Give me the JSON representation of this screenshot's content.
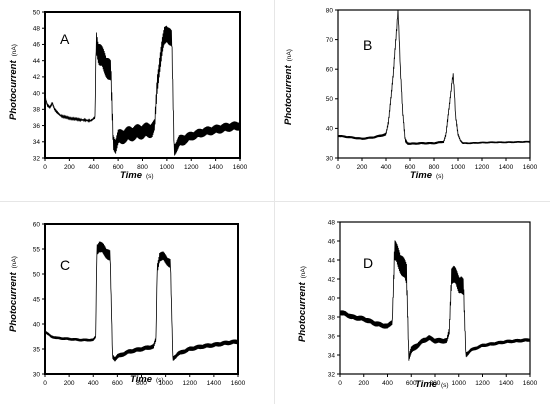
{
  "chart_data": [
    {
      "type": "line",
      "panel_label": "A",
      "xlabel": "Time",
      "xunit": "(s)",
      "ylabel": "Photocurrent",
      "yunit": "(nA)",
      "xlim": [
        0,
        1600
      ],
      "ylim": [
        32,
        50
      ],
      "xticks": [
        0,
        200,
        400,
        600,
        800,
        1000,
        1200,
        1400,
        1600
      ],
      "yticks": [
        32,
        34,
        36,
        38,
        40,
        42,
        44,
        46,
        48,
        50
      ],
      "series": [
        {
          "x": [
            0,
            20,
            40,
            60,
            80,
            100,
            130,
            200,
            300,
            380,
            410,
            420,
            440,
            460,
            480,
            500,
            520,
            540,
            560,
            580,
            600,
            700,
            800,
            880,
            900,
            920,
            940,
            960,
            980,
            1000,
            1020,
            1040,
            1060,
            1080,
            1100,
            1200,
            1300,
            1400,
            1500,
            1600
          ],
          "y": [
            39.5,
            38.5,
            38.2,
            38.8,
            38.0,
            37.6,
            37.2,
            36.9,
            36.7,
            36.6,
            37.0,
            46.5,
            45.0,
            44.5,
            44.0,
            43.5,
            43.0,
            42.5,
            34.0,
            33.5,
            34.5,
            35.0,
            35.3,
            35.5,
            36.0,
            41.0,
            43.5,
            45.5,
            47.0,
            47.5,
            47.0,
            46.5,
            33.0,
            33.5,
            34.0,
            34.7,
            35.2,
            35.5,
            35.8,
            36.0
          ],
          "noise": [
            0.2,
            0.2,
            0.2,
            0.2,
            0.2,
            0.2,
            0.1,
            0.1,
            0.1,
            0.1,
            0.2,
            1.5,
            1.5,
            1.5,
            1.5,
            1.5,
            1.5,
            1.5,
            1.0,
            1.0,
            1.0,
            1.0,
            1.0,
            1.0,
            0.8,
            1.2,
            1.2,
            1.2,
            1.2,
            1.2,
            1.2,
            1.2,
            0.8,
            0.8,
            0.8,
            0.6,
            0.6,
            0.6,
            0.6,
            0.6
          ]
        }
      ]
    },
    {
      "type": "line",
      "panel_label": "B",
      "xlabel": "Time",
      "xunit": "(s)",
      "ylabel": "Photocurrent",
      "yunit": "(nA)",
      "xlim": [
        0,
        1600
      ],
      "ylim": [
        30,
        80
      ],
      "xticks": [
        0,
        200,
        400,
        600,
        800,
        1000,
        1200,
        1400,
        1600
      ],
      "yticks": [
        30,
        40,
        50,
        60,
        70,
        80
      ],
      "series": [
        {
          "x": [
            0,
            100,
            200,
            300,
            400,
            420,
            440,
            460,
            480,
            490,
            500,
            510,
            520,
            540,
            560,
            580,
            600,
            700,
            800,
            880,
            900,
            920,
            940,
            950,
            960,
            970,
            980,
            1000,
            1020,
            1040,
            1100,
            1200,
            1300,
            1400,
            1500,
            1600
          ],
          "y": [
            37.5,
            37.0,
            36.5,
            37.0,
            38.0,
            42.0,
            50.0,
            58.0,
            69.0,
            74.0,
            80.0,
            71.0,
            60.0,
            45.0,
            36.0,
            35.0,
            34.8,
            35.0,
            35.0,
            35.5,
            38.0,
            45.0,
            52.0,
            56.0,
            58.0,
            52.0,
            44.0,
            38.0,
            36.0,
            35.0,
            35.0,
            35.2,
            35.3,
            35.3,
            35.4,
            35.5
          ],
          "noise": [
            0.4,
            0.4,
            0.4,
            0.4,
            0.5,
            0.8,
            1.0,
            1.0,
            1.0,
            1.0,
            1.0,
            1.0,
            1.0,
            1.0,
            0.8,
            0.5,
            0.4,
            0.4,
            0.4,
            0.4,
            0.6,
            0.8,
            0.8,
            0.8,
            0.8,
            0.8,
            0.8,
            0.5,
            0.4,
            0.3,
            0.3,
            0.3,
            0.3,
            0.3,
            0.3,
            0.3
          ]
        }
      ]
    },
    {
      "type": "line",
      "panel_label": "C",
      "xlabel": "Time",
      "xunit": "(s)",
      "ylabel": "Photocurrent",
      "yunit": "(nA)",
      "xlim": [
        0,
        1600
      ],
      "ylim": [
        30,
        60
      ],
      "xticks": [
        0,
        200,
        400,
        600,
        800,
        1000,
        1200,
        1400,
        1600
      ],
      "yticks": [
        30,
        35,
        40,
        45,
        50,
        55,
        60
      ],
      "series": [
        {
          "x": [
            0,
            50,
            100,
            200,
            300,
            400,
            420,
            430,
            450,
            480,
            500,
            520,
            540,
            560,
            580,
            600,
            700,
            800,
            900,
            920,
            930,
            950,
            980,
            1000,
            1020,
            1040,
            1060,
            1080,
            1100,
            1200,
            1300,
            1400,
            1500,
            1600
          ],
          "y": [
            38.5,
            37.5,
            37.2,
            37.0,
            36.8,
            36.8,
            37.5,
            55.0,
            55.5,
            55.0,
            54.5,
            54.0,
            53.5,
            33.5,
            33.0,
            33.5,
            34.5,
            35.0,
            35.5,
            37.0,
            51.0,
            53.5,
            53.5,
            53.0,
            52.5,
            52.0,
            33.0,
            33.5,
            34.0,
            35.0,
            35.5,
            35.8,
            36.2,
            36.5
          ],
          "noise": [
            0.3,
            0.3,
            0.3,
            0.3,
            0.3,
            0.3,
            0.3,
            1.2,
            1.2,
            1.2,
            1.2,
            1.2,
            1.2,
            0.5,
            0.5,
            0.5,
            0.5,
            0.5,
            0.5,
            0.5,
            1.0,
            1.0,
            1.0,
            1.0,
            1.0,
            1.0,
            0.5,
            0.5,
            0.5,
            0.5,
            0.5,
            0.5,
            0.5,
            0.5
          ]
        }
      ]
    },
    {
      "type": "line",
      "panel_label": "D",
      "xlabel": "Time",
      "xunit": "(s)",
      "ylabel": "Photocurrent",
      "yunit": "(nA)",
      "xlim": [
        0,
        1600
      ],
      "ylim": [
        32,
        48
      ],
      "xticks": [
        0,
        200,
        400,
        600,
        800,
        1000,
        1200,
        1400,
        1600
      ],
      "yticks": [
        32,
        34,
        36,
        38,
        40,
        42,
        44,
        46,
        48
      ],
      "series": [
        {
          "x": [
            0,
            50,
            100,
            200,
            300,
            400,
            440,
            460,
            480,
            500,
            520,
            540,
            560,
            580,
            600,
            700,
            750,
            800,
            900,
            920,
            940,
            960,
            980,
            1000,
            1020,
            1040,
            1060,
            1100,
            1200,
            1300,
            1400,
            1500,
            1600
          ],
          "y": [
            38.5,
            38.3,
            38.0,
            37.8,
            37.3,
            37.0,
            37.5,
            45.0,
            44.5,
            44.0,
            43.5,
            43.0,
            42.5,
            33.8,
            34.5,
            35.5,
            35.8,
            35.5,
            35.5,
            36.5,
            42.5,
            42.5,
            42.0,
            41.5,
            41.5,
            41.0,
            34.0,
            34.5,
            35.0,
            35.2,
            35.4,
            35.5,
            35.6
          ],
          "noise": [
            0.3,
            0.3,
            0.3,
            0.3,
            0.3,
            0.3,
            0.3,
            1.2,
            1.2,
            1.2,
            1.2,
            1.2,
            1.2,
            0.4,
            0.4,
            0.3,
            0.3,
            0.3,
            0.3,
            0.4,
            1.0,
            1.0,
            1.0,
            1.0,
            1.0,
            1.0,
            0.3,
            0.2,
            0.2,
            0.2,
            0.2,
            0.2,
            0.2
          ]
        }
      ]
    }
  ]
}
